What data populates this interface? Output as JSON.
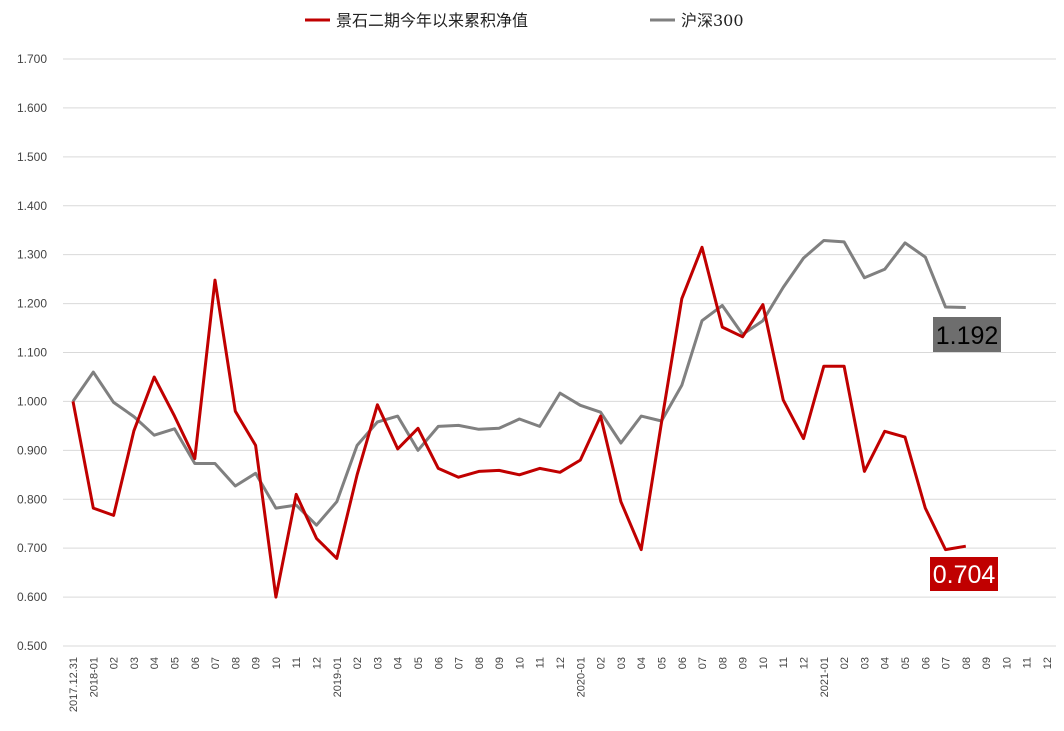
{
  "chart_data": {
    "type": "line",
    "title": "",
    "xlabel": "",
    "ylabel": "",
    "ylim": [
      0.5,
      1.7
    ],
    "yticks": [
      "1.700",
      "1.600",
      "1.500",
      "1.400",
      "1.300",
      "1.200",
      "1.100",
      "1.000",
      "0.900",
      "0.800",
      "0.700",
      "0.600",
      "0.500"
    ],
    "grid": true,
    "legend_position": "top-center",
    "categories": [
      "2017.12.31",
      "2018-01",
      "02",
      "03",
      "04",
      "05",
      "06",
      "07",
      "08",
      "09",
      "10",
      "11",
      "12",
      "2019-01",
      "02",
      "03",
      "04",
      "05",
      "06",
      "07",
      "08",
      "09",
      "10",
      "11",
      "12",
      "2020-01",
      "02",
      "03",
      "04",
      "05",
      "06",
      "07",
      "08",
      "09",
      "10",
      "11",
      "12",
      "2021-01",
      "02",
      "03",
      "04",
      "05",
      "06",
      "07",
      "08",
      "09",
      "10",
      "11",
      "12"
    ],
    "series": [
      {
        "name": "景石二期今年以来累积净值",
        "color": "#c00000",
        "values": [
          1.0,
          0.782,
          0.767,
          0.94,
          1.05,
          0.97,
          0.883,
          1.248,
          0.98,
          0.91,
          0.6,
          0.81,
          0.72,
          0.679,
          0.85,
          0.993,
          0.903,
          0.945,
          0.863,
          0.845,
          0.857,
          0.859,
          0.85,
          0.863,
          0.855,
          0.88,
          0.97,
          0.795,
          0.697,
          0.957,
          1.21,
          1.315,
          1.152,
          1.132,
          1.198,
          1.003,
          0.924,
          1.072,
          1.072,
          0.857,
          0.939,
          0.927,
          0.782,
          0.697,
          0.704,
          null,
          null,
          null,
          null
        ]
      },
      {
        "name": "沪深300",
        "color": "#808080",
        "values": [
          1.0,
          1.06,
          0.998,
          0.969,
          0.931,
          0.944,
          0.873,
          0.873,
          0.827,
          0.853,
          0.782,
          0.788,
          0.747,
          0.795,
          0.91,
          0.958,
          0.97,
          0.9,
          0.949,
          0.951,
          0.943,
          0.945,
          0.964,
          0.949,
          1.017,
          0.992,
          0.978,
          0.915,
          0.97,
          0.96,
          1.033,
          1.165,
          1.196,
          1.137,
          1.165,
          1.233,
          1.293,
          1.329,
          1.326,
          1.253,
          1.27,
          1.324,
          1.295,
          1.193,
          1.192,
          null,
          null,
          null,
          null
        ]
      }
    ],
    "annotations": [
      {
        "text": "1.192",
        "series": "沪深300",
        "background": "#6e6e6e",
        "color": "#000000"
      },
      {
        "text": "0.704",
        "series": "景石二期今年以来累积净值",
        "background": "#c00000",
        "color": "#ffffff"
      }
    ]
  }
}
